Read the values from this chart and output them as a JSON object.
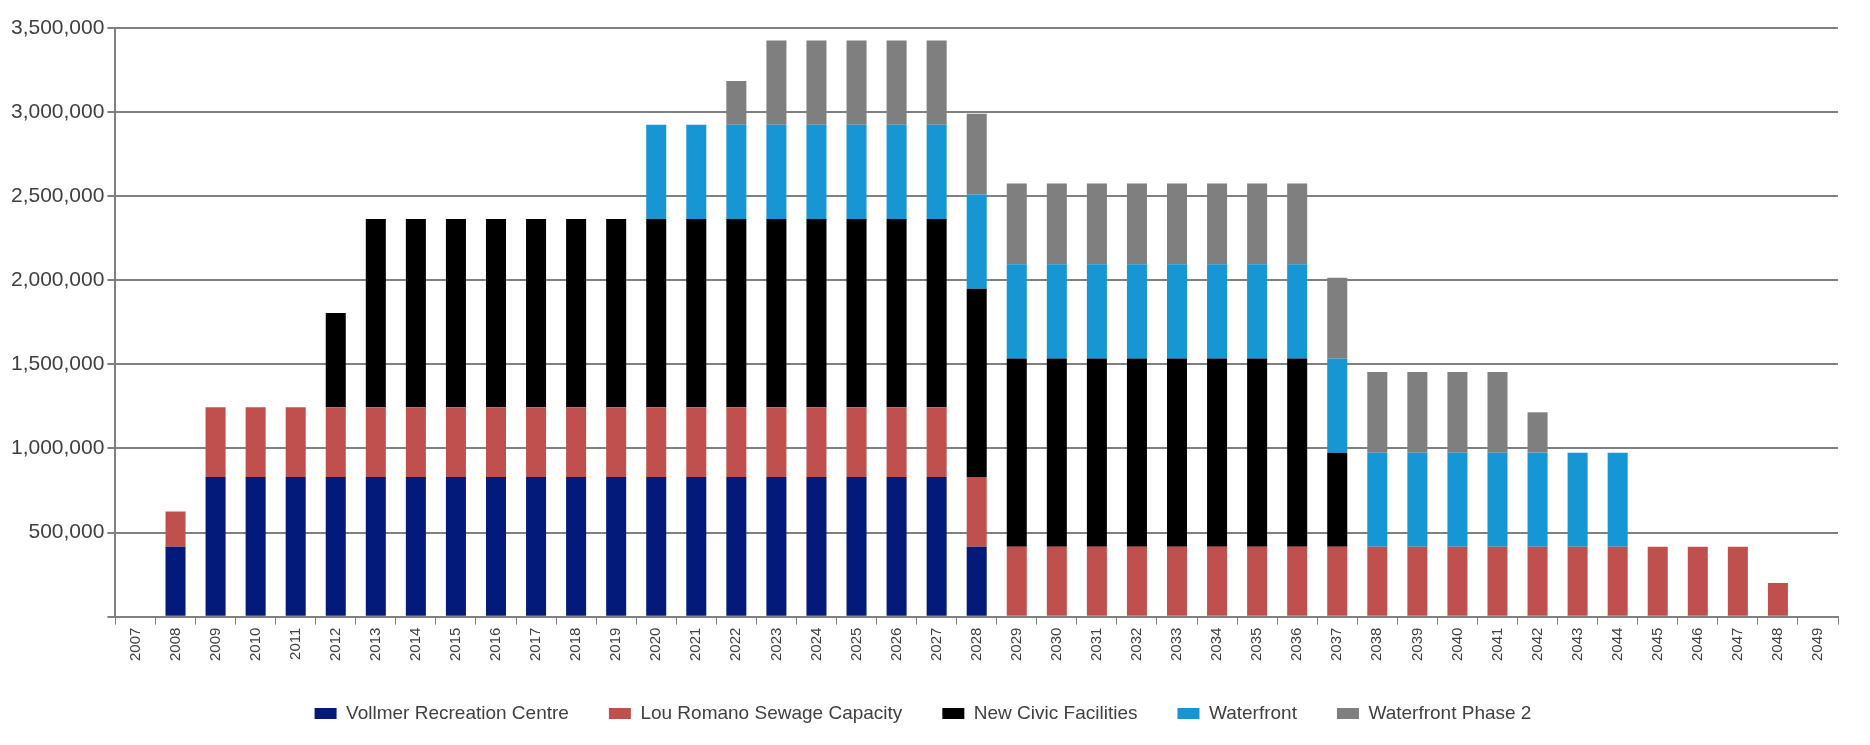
{
  "chart_data": {
    "type": "bar",
    "stacked": true,
    "categories": [
      "2007",
      "2008",
      "2009",
      "2010",
      "2011",
      "2012",
      "2013",
      "2014",
      "2015",
      "2016",
      "2017",
      "2018",
      "2019",
      "2020",
      "2021",
      "2022",
      "2023",
      "2024",
      "2025",
      "2026",
      "2027",
      "2028",
      "2029",
      "2030",
      "2031",
      "2032",
      "2033",
      "2034",
      "2035",
      "2036",
      "2037",
      "2038",
      "2039",
      "2040",
      "2041",
      "2042",
      "2043",
      "2044",
      "2045",
      "2046",
      "2047",
      "2048",
      "2049"
    ],
    "series": [
      {
        "name": "Vollmer Recreation Centre",
        "color": "#031a7a",
        "values": [
          null,
          415000,
          830000,
          830000,
          830000,
          830000,
          830000,
          830000,
          830000,
          830000,
          830000,
          830000,
          830000,
          830000,
          830000,
          830000,
          830000,
          830000,
          830000,
          830000,
          830000,
          415000,
          null,
          null,
          null,
          null,
          null,
          null,
          null,
          null,
          null,
          null,
          null,
          null,
          null,
          null,
          null,
          null,
          null,
          null,
          null,
          null,
          null
        ]
      },
      {
        "name": "Lou Romano Sewage Capacity",
        "color": "#c0504d",
        "values": [
          null,
          210000,
          415000,
          415000,
          415000,
          415000,
          415000,
          415000,
          415000,
          415000,
          415000,
          415000,
          415000,
          415000,
          415000,
          415000,
          415000,
          415000,
          415000,
          415000,
          415000,
          415000,
          415000,
          415000,
          415000,
          415000,
          415000,
          415000,
          415000,
          415000,
          415000,
          415000,
          415000,
          415000,
          415000,
          415000,
          415000,
          415000,
          415000,
          415000,
          415000,
          200000,
          null
        ]
      },
      {
        "name": "New Civic Facilities",
        "color": "#000000",
        "values": [
          null,
          null,
          null,
          null,
          null,
          560000,
          1120000,
          1120000,
          1120000,
          1120000,
          1120000,
          1120000,
          1120000,
          1120000,
          1120000,
          1120000,
          1120000,
          1120000,
          1120000,
          1120000,
          1120000,
          1120000,
          1120000,
          1120000,
          1120000,
          1120000,
          1120000,
          1120000,
          1120000,
          1120000,
          560000,
          null,
          null,
          null,
          null,
          null,
          null,
          null,
          null,
          null,
          null,
          null,
          null
        ]
      },
      {
        "name": "Waterfront",
        "color": "#1796d4",
        "values": [
          null,
          null,
          null,
          null,
          null,
          null,
          null,
          null,
          null,
          null,
          null,
          null,
          null,
          560000,
          560000,
          560000,
          560000,
          560000,
          560000,
          560000,
          560000,
          560000,
          560000,
          560000,
          560000,
          560000,
          560000,
          560000,
          560000,
          560000,
          560000,
          560000,
          560000,
          560000,
          560000,
          560000,
          560000,
          560000,
          null,
          null,
          null,
          null,
          null
        ]
      },
      {
        "name": "Waterfront Phase 2",
        "color": "#7f7f7f",
        "values": [
          null,
          null,
          null,
          null,
          null,
          null,
          null,
          null,
          null,
          null,
          null,
          null,
          null,
          null,
          null,
          260000,
          500000,
          500000,
          500000,
          500000,
          500000,
          480000,
          480000,
          480000,
          480000,
          480000,
          480000,
          480000,
          480000,
          480000,
          480000,
          480000,
          480000,
          480000,
          480000,
          240000,
          null,
          null,
          null,
          null,
          null,
          null,
          null
        ]
      }
    ],
    "ylim": [
      0,
      3500000
    ],
    "yticks": [
      {
        "value": 0,
        "label": null
      },
      {
        "value": 500000,
        "label": "500,000"
      },
      {
        "value": 1000000,
        "label": "1,000,000"
      },
      {
        "value": 1500000,
        "label": "1,500,000"
      },
      {
        "value": 2000000,
        "label": "2,000,000"
      },
      {
        "value": 2500000,
        "label": "2,500,000"
      },
      {
        "value": 3000000,
        "label": "3,000,000"
      },
      {
        "value": 3500000,
        "label": "3,500,000"
      }
    ],
    "grid": "y",
    "legend": "bottom"
  }
}
